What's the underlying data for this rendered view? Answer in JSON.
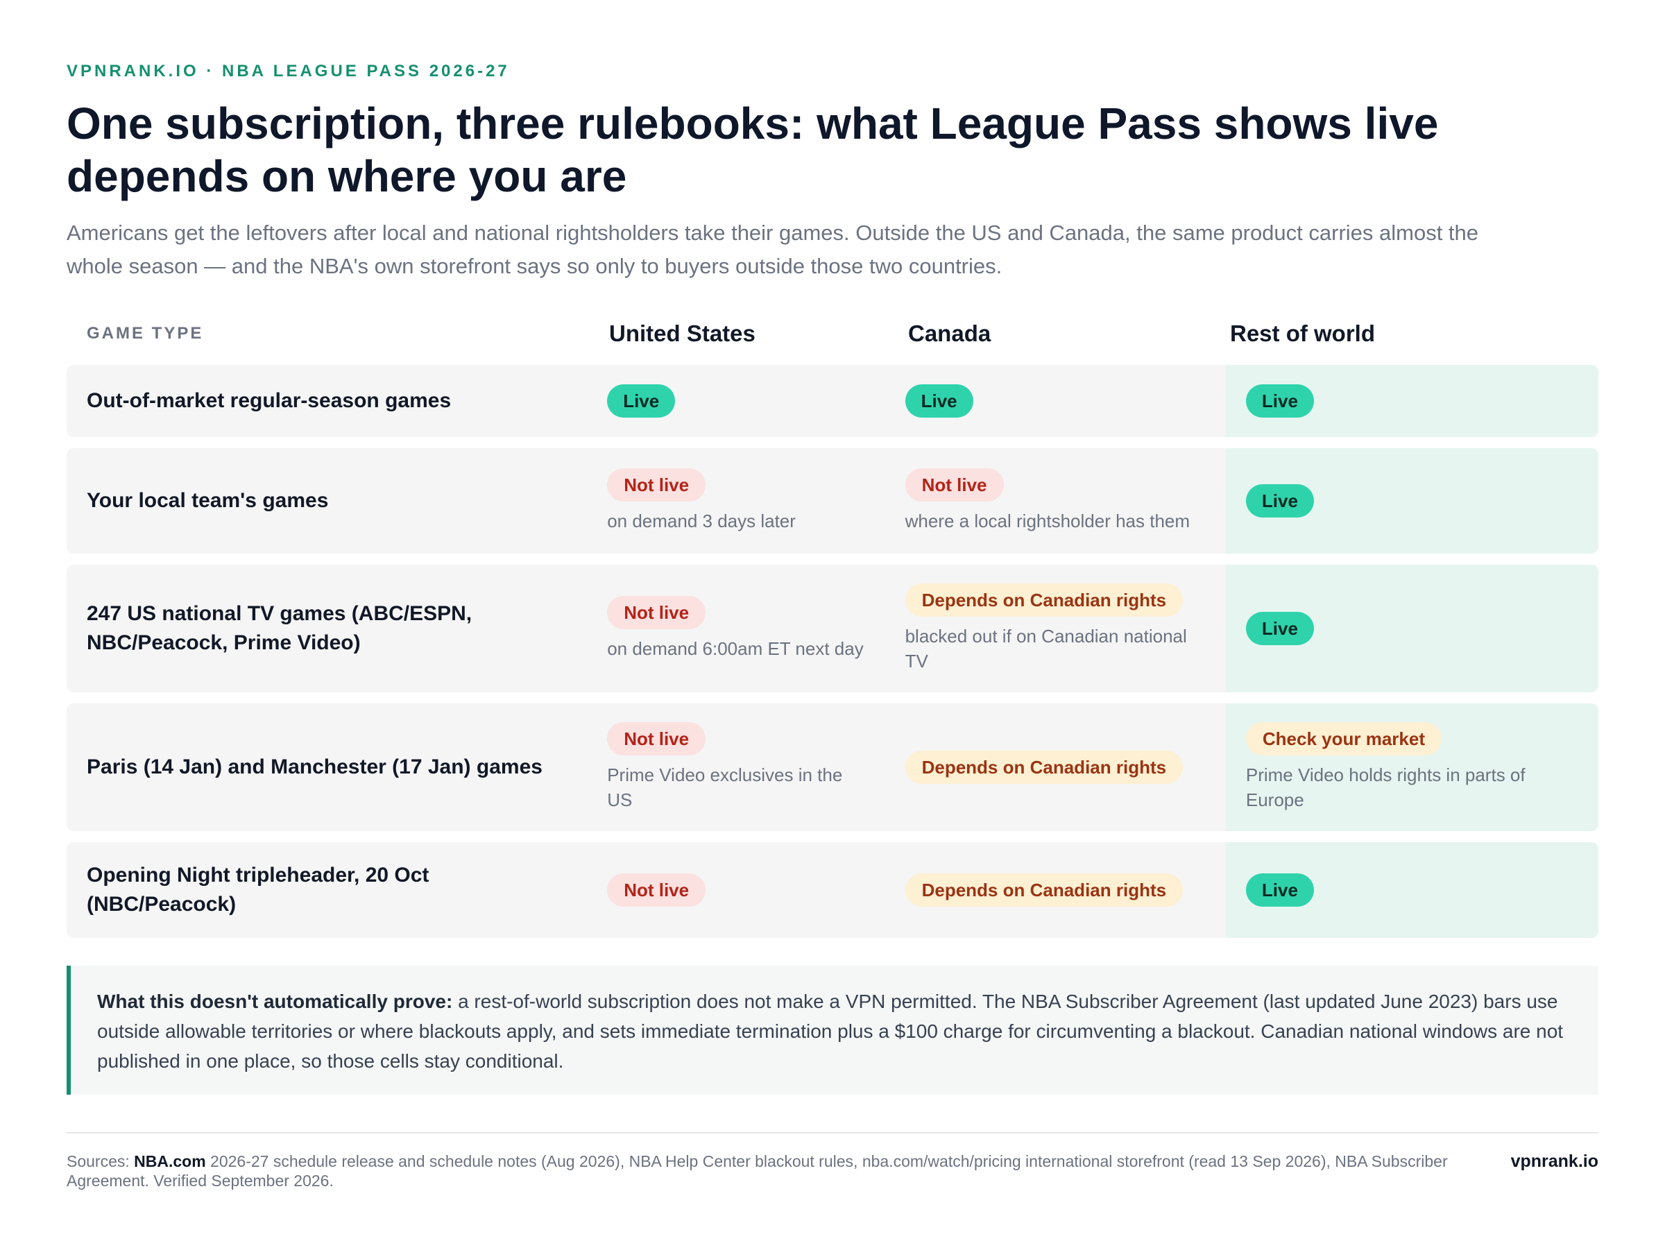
{
  "header": {
    "eyebrow": "VPNRANK.IO · NBA LEAGUE PASS 2026-27",
    "title": "One subscription, three rulebooks: what League Pass shows live depends on where you are",
    "subtitle": "Americans get the leftovers after local and national rightsholders take their games. Outside the US and Canada, the same product carries almost the whole season — and the NBA's own storefront says so only to buyers outside those two countries."
  },
  "table": {
    "columns": [
      "GAME TYPE",
      "United States",
      "Canada",
      "Rest of world"
    ],
    "rows": [
      {
        "label": "Out-of-market regular-season games",
        "us": {
          "status": "Live",
          "note": ""
        },
        "ca": {
          "status": "Live",
          "note": ""
        },
        "row": {
          "status": "Live",
          "note": ""
        }
      },
      {
        "label": "Your local team's games",
        "us": {
          "status": "Not live",
          "note": "on demand 3 days later"
        },
        "ca": {
          "status": "Not live",
          "note": "where a local rightsholder has them"
        },
        "row": {
          "status": "Live",
          "note": ""
        }
      },
      {
        "label": "247 US national TV games (ABC/ESPN, NBC/Peacock, Prime Video)",
        "us": {
          "status": "Not live",
          "note": "on demand 6:00am ET next day"
        },
        "ca": {
          "status": "Depends on Canadian rights",
          "note": "blacked out if on Canadian national TV"
        },
        "row": {
          "status": "Live",
          "note": ""
        }
      },
      {
        "label": "Paris (14 Jan) and Manchester (17 Jan) games",
        "us": {
          "status": "Not live",
          "note": "Prime Video exclusives in the US"
        },
        "ca": {
          "status": "Depends on Canadian rights",
          "note": ""
        },
        "row": {
          "status": "Check your market",
          "note": "Prime Video holds rights in parts of Europe"
        }
      },
      {
        "label": "Opening Night tripleheader, 20 Oct (NBC/Peacock)",
        "us": {
          "status": "Not live",
          "note": ""
        },
        "ca": {
          "status": "Depends on Canadian rights",
          "note": ""
        },
        "row": {
          "status": "Live",
          "note": ""
        }
      }
    ]
  },
  "callout": {
    "lead": "What this doesn't automatically prove:",
    "body": " a rest-of-world subscription does not make a VPN permitted. The NBA Subscriber Agreement (last updated June 2023) bars use outside allowable territories or where blackouts apply, and sets immediate termination plus a $100 charge for circumventing a blackout. Canadian national windows are not published in one place, so those cells stay conditional."
  },
  "footer": {
    "sources_label": "Sources: ",
    "sources_bold": "NBA.com",
    "sources_text": " 2026-27 schedule release and schedule notes (Aug 2026), NBA Help Center blackout rules, nba.com/watch/pricing international storefront (read 13 Sep 2026), NBA Subscriber Agreement. Verified September 2026.",
    "brand": "vpnrank.io"
  },
  "colors": {
    "accent": "#14906f",
    "live_pill": "#2ed3ac",
    "not_live_bg": "#fbe1e0",
    "not_live_text": "#b42318",
    "conditional_bg": "#fdf0d3",
    "conditional_text": "#9a3412",
    "row_bg": "#f5f5f5",
    "rest_of_world_bg": "#e6f5f0"
  }
}
